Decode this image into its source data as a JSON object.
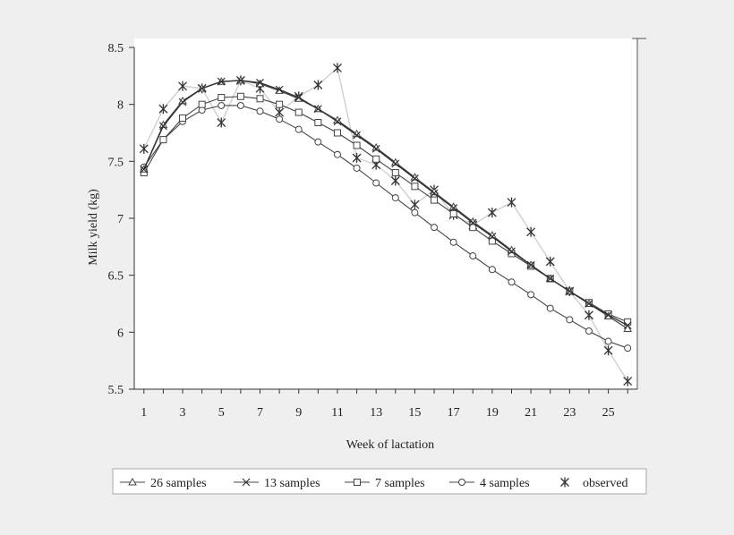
{
  "chart_data": {
    "type": "line",
    "title": "",
    "xlabel": "Week of lactation",
    "ylabel": "Milk yield (kg)",
    "xlim": [
      0.5,
      26.5
    ],
    "ylim": [
      5.5,
      8.5
    ],
    "xticks": [
      1,
      3,
      5,
      7,
      9,
      11,
      13,
      15,
      17,
      19,
      21,
      23,
      25
    ],
    "yticks": [
      5.5,
      6,
      6.5,
      7,
      7.5,
      8,
      8.5
    ],
    "x": [
      1,
      2,
      3,
      4,
      5,
      6,
      7,
      8,
      9,
      10,
      11,
      12,
      13,
      14,
      15,
      16,
      17,
      18,
      19,
      20,
      21,
      22,
      23,
      24,
      25,
      26
    ],
    "series": [
      {
        "name": "26 samples",
        "marker": "triangle",
        "values": [
          7.43,
          7.82,
          8.03,
          8.14,
          8.2,
          8.21,
          8.18,
          8.12,
          8.05,
          7.96,
          7.86,
          7.74,
          7.62,
          7.49,
          7.36,
          7.23,
          7.1,
          6.97,
          6.85,
          6.72,
          6.59,
          6.47,
          6.36,
          6.25,
          6.14,
          6.03
        ]
      },
      {
        "name": "13 samples",
        "marker": "x",
        "values": [
          7.43,
          7.81,
          8.02,
          8.14,
          8.2,
          8.21,
          8.19,
          8.13,
          8.06,
          7.96,
          7.85,
          7.73,
          7.61,
          7.48,
          7.35,
          7.22,
          7.09,
          6.96,
          6.84,
          6.71,
          6.59,
          6.47,
          6.36,
          6.25,
          6.15,
          6.06
        ]
      },
      {
        "name": "7 samples",
        "marker": "square",
        "values": [
          7.4,
          7.69,
          7.88,
          8.0,
          8.06,
          8.07,
          8.05,
          8.0,
          7.93,
          7.84,
          7.75,
          7.64,
          7.52,
          7.4,
          7.28,
          7.16,
          7.04,
          6.92,
          6.8,
          6.69,
          6.58,
          6.47,
          6.36,
          6.26,
          6.16,
          6.09
        ]
      },
      {
        "name": "4 samples",
        "marker": "circle",
        "values": [
          7.45,
          7.69,
          7.85,
          7.95,
          7.99,
          7.99,
          7.94,
          7.87,
          7.78,
          7.67,
          7.56,
          7.44,
          7.31,
          7.18,
          7.05,
          6.92,
          6.79,
          6.67,
          6.55,
          6.44,
          6.33,
          6.21,
          6.11,
          6.01,
          5.92,
          5.86
        ]
      },
      {
        "name": "observed",
        "marker": "star",
        "values": [
          7.61,
          7.96,
          8.16,
          8.14,
          7.84,
          8.21,
          8.14,
          7.93,
          8.07,
          8.17,
          8.32,
          7.53,
          7.47,
          7.33,
          7.12,
          7.25,
          7.03,
          6.94,
          7.05,
          7.14,
          6.88,
          6.62,
          6.36,
          6.15,
          5.84,
          5.57
        ]
      }
    ],
    "legend_position": "bottom"
  }
}
